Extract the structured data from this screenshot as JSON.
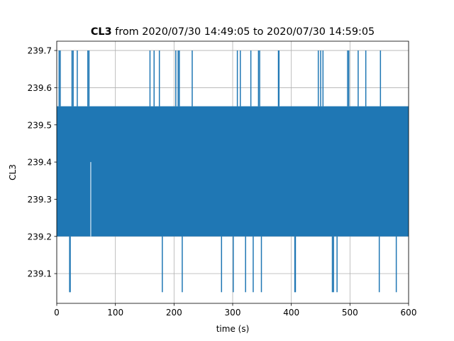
{
  "chart_data": {
    "type": "line",
    "title_bold": "CL3",
    "title_rest": " from 2020/07/30 14:49:05 to 2020/07/30 14:59:05",
    "xlabel": "time (s)",
    "ylabel": "CL3",
    "xlim": [
      0,
      600
    ],
    "ylim": [
      239.02,
      239.725
    ],
    "xticks": [
      0,
      100,
      200,
      300,
      400,
      500,
      600
    ],
    "yticks": [
      239.1,
      239.2,
      239.3,
      239.4,
      239.5,
      239.6,
      239.7
    ],
    "grid": true,
    "series_color": "#1f77b4",
    "series": [
      {
        "band": {
          "x": [
            0,
            600
          ],
          "y_low": 239.2,
          "y_high": 239.55
        },
        "spikes_up": {
          "value": 239.7,
          "x": [
            4,
            6,
            26,
            28,
            35,
            53,
            55,
            159,
            166,
            175,
            203,
            207,
            209,
            231,
            308,
            313,
            331,
            344,
            346,
            378,
            379,
            446,
            450,
            454,
            496,
            498,
            514,
            527,
            552
          ]
        },
        "spikes_down": {
          "value": 239.05,
          "x": [
            22,
            23,
            180,
            214,
            281,
            301,
            322,
            335,
            349,
            406,
            407,
            470,
            472,
            478,
            550,
            579
          ]
        },
        "gap": {
          "x": 58,
          "y_low": 239.2,
          "y_high": 239.4
        }
      }
    ]
  }
}
